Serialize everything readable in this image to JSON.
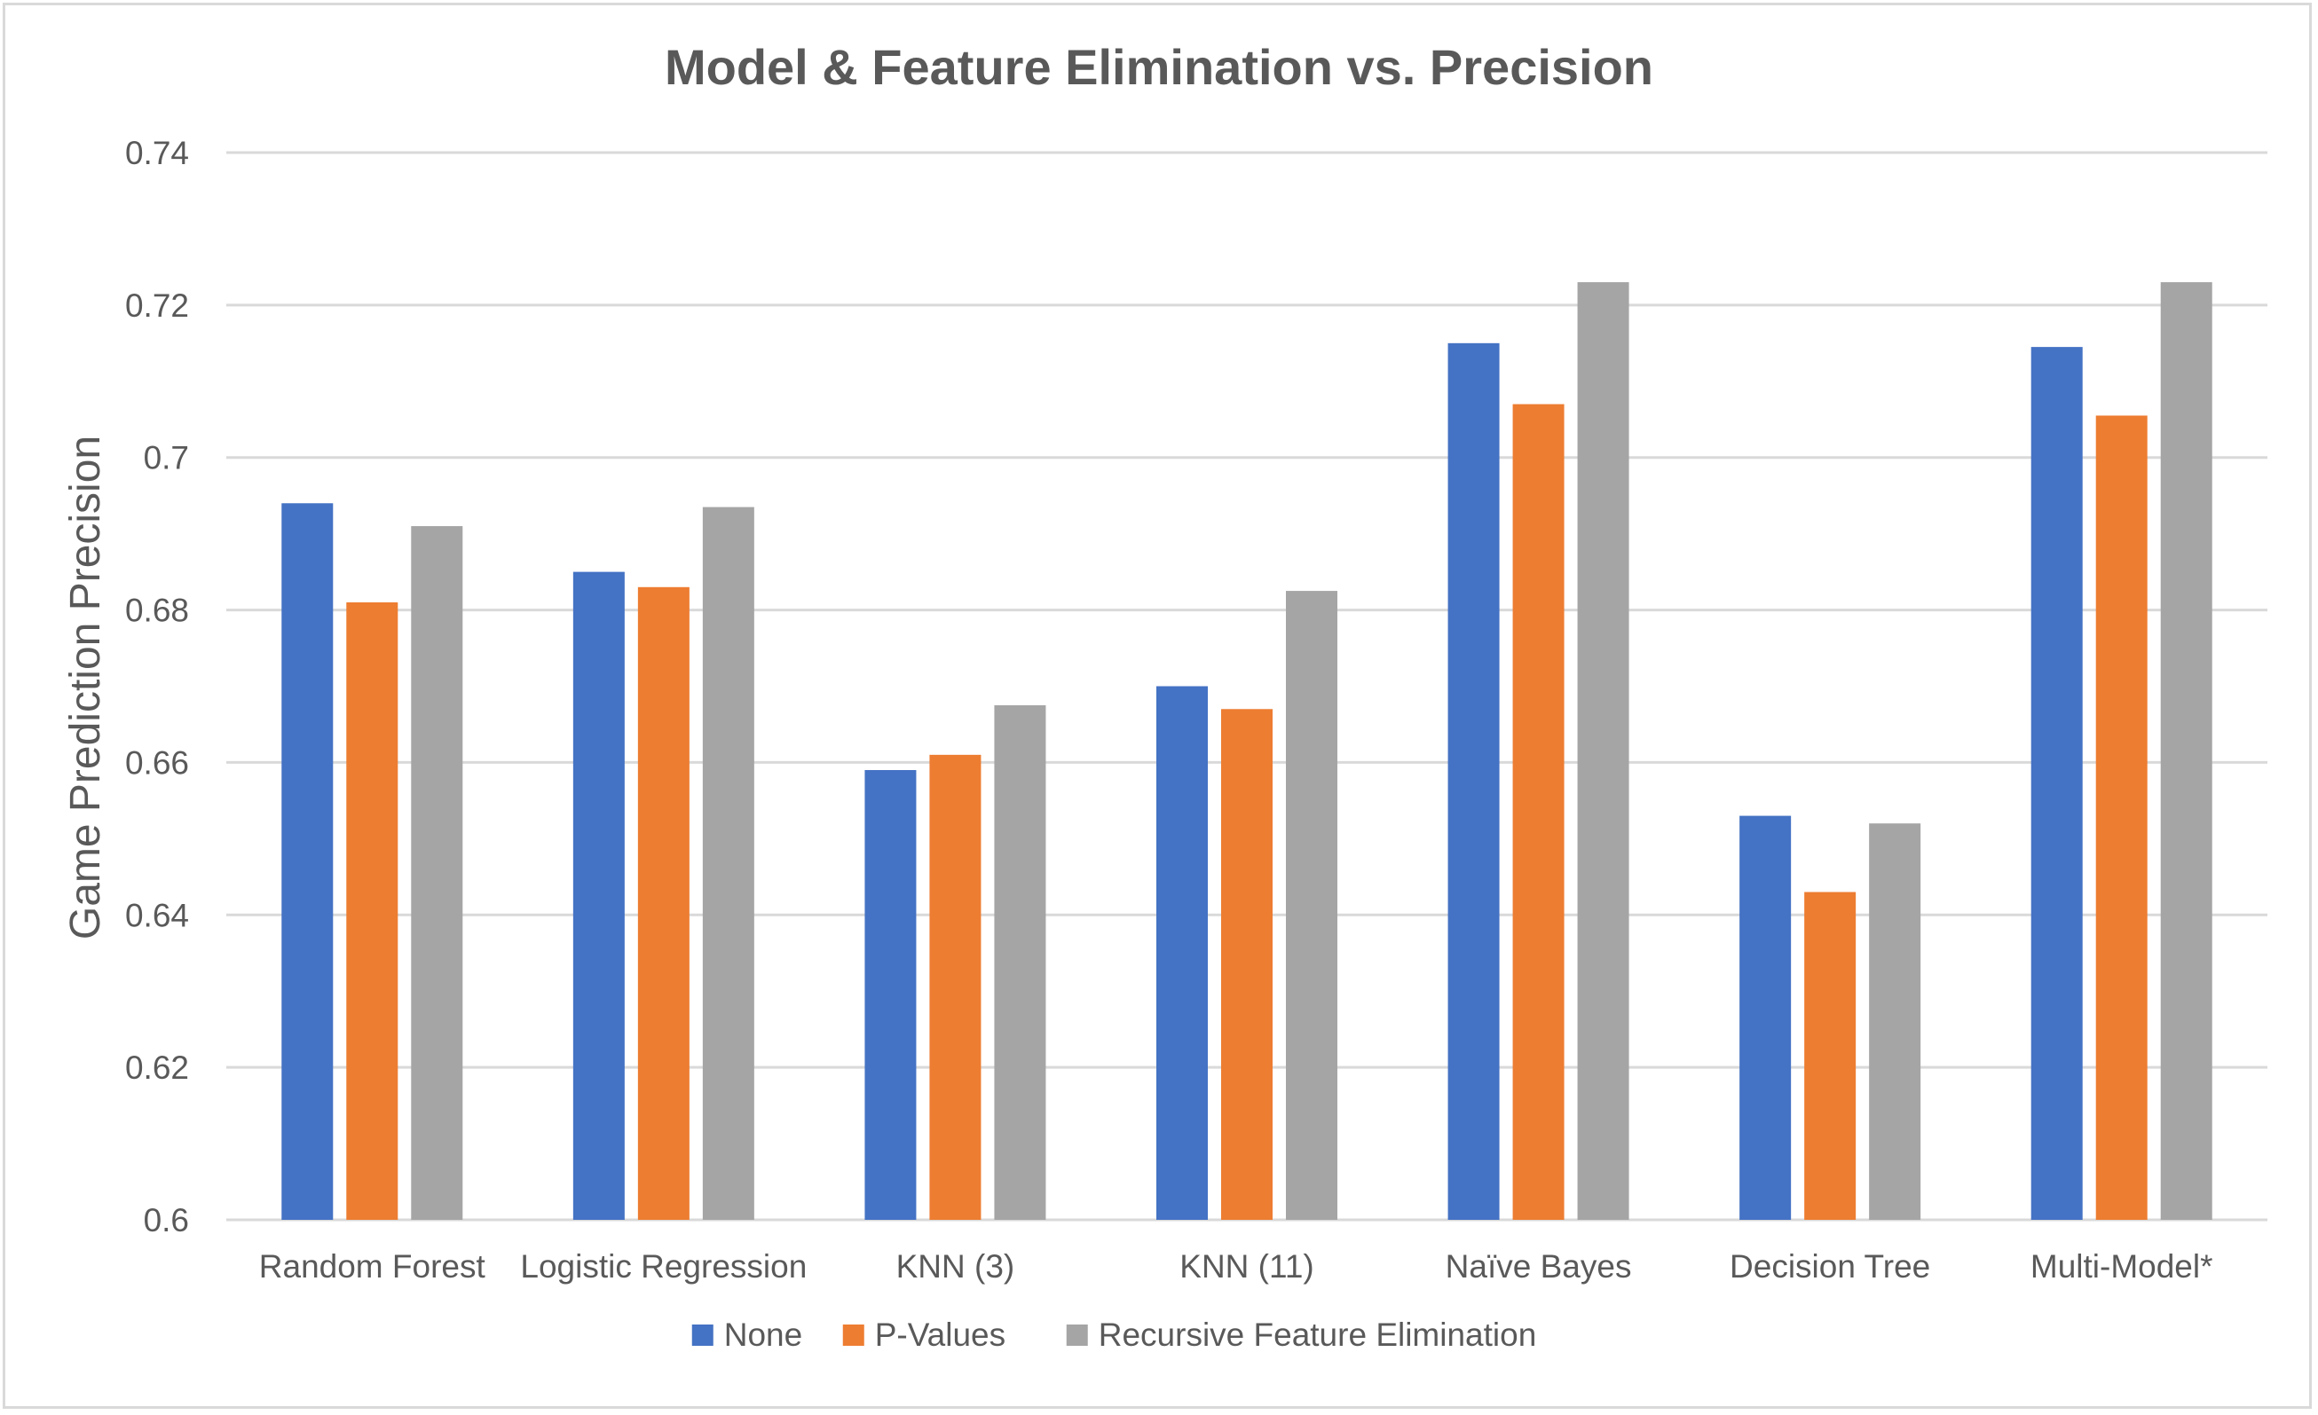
{
  "chart_data": {
    "type": "bar",
    "title": "Model & Feature Elimination vs. Precision",
    "xlabel": "",
    "ylabel": "Game Prediction Precision",
    "ylim": [
      0.6,
      0.74
    ],
    "yticks": [
      "0.6",
      "0.62",
      "0.64",
      "0.66",
      "0.68",
      "0.7",
      "0.72",
      "0.74"
    ],
    "grid": true,
    "legend_position": "bottom",
    "categories": [
      "Random Forest",
      "Logistic Regression",
      "KNN (3)",
      "KNN (11)",
      "Naïve Bayes",
      "Decision Tree",
      "Multi-Model*"
    ],
    "series": [
      {
        "name": "None",
        "color": "#4472c4",
        "values": [
          0.694,
          0.685,
          0.659,
          0.67,
          0.715,
          0.653,
          0.7145
        ]
      },
      {
        "name": "P-Values",
        "color": "#ed7d31",
        "values": [
          0.681,
          0.683,
          0.661,
          0.667,
          0.707,
          0.643,
          0.7055
        ]
      },
      {
        "name": "Recursive Feature Elimination",
        "color": "#a5a5a5",
        "values": [
          0.691,
          0.6935,
          0.6675,
          0.6825,
          0.723,
          0.652,
          0.723
        ]
      }
    ]
  }
}
